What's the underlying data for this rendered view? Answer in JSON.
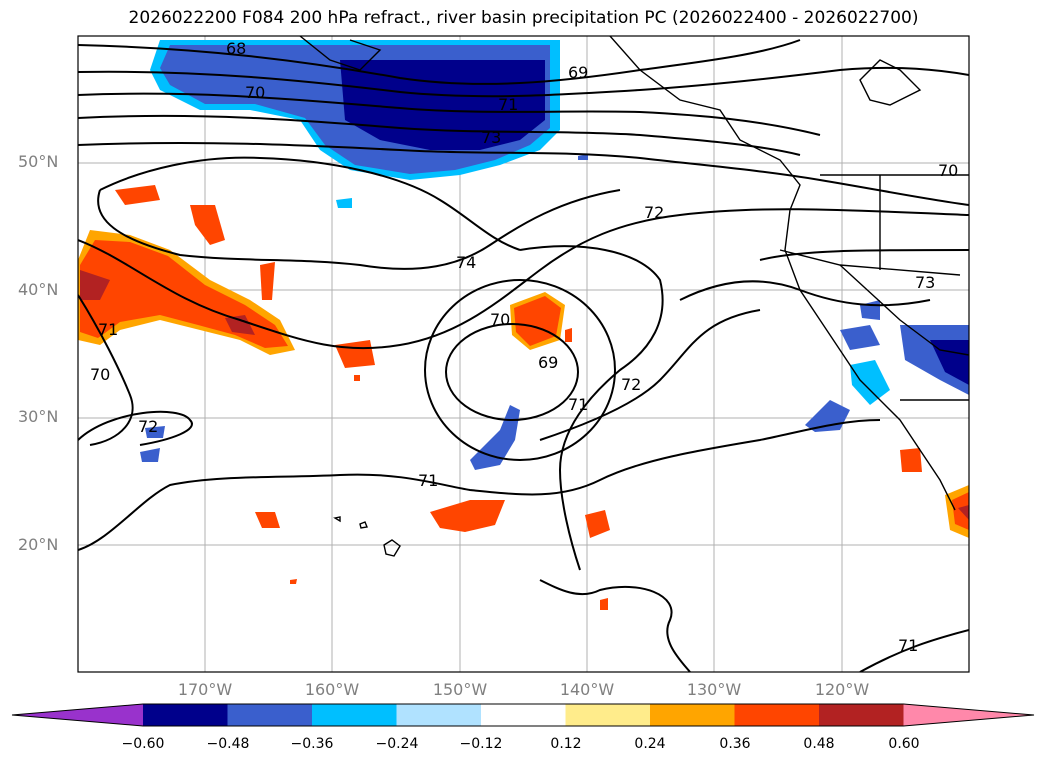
{
  "title": "2026022200 F084 200 hPa refract., river basin precipitation PC (2026022400 - 2026022700)",
  "map": {
    "lat_labels": [
      "50°N",
      "40°N",
      "30°N",
      "20°N"
    ],
    "lon_labels": [
      "170°W",
      "160°W",
      "150°W",
      "140°W",
      "130°W",
      "120°W"
    ],
    "contour_labels": [
      "68",
      "69",
      "70",
      "71",
      "73",
      "72",
      "74",
      "70",
      "69",
      "71",
      "72",
      "71",
      "70",
      "72",
      "71",
      "70",
      "73",
      "71"
    ]
  },
  "colorbar": {
    "ticks": [
      "−0.60",
      "−0.48",
      "−0.36",
      "−0.24",
      "−0.12",
      "0.12",
      "0.24",
      "0.36",
      "0.48",
      "0.60"
    ],
    "colors": [
      "#9932cc",
      "#00008b",
      "#3a5fcd",
      "#00bfff",
      "#b0e2ff",
      "#ffffff",
      "#ffec8b",
      "#ffa500",
      "#ff4500",
      "#b22222",
      "#ff88aa"
    ]
  }
}
